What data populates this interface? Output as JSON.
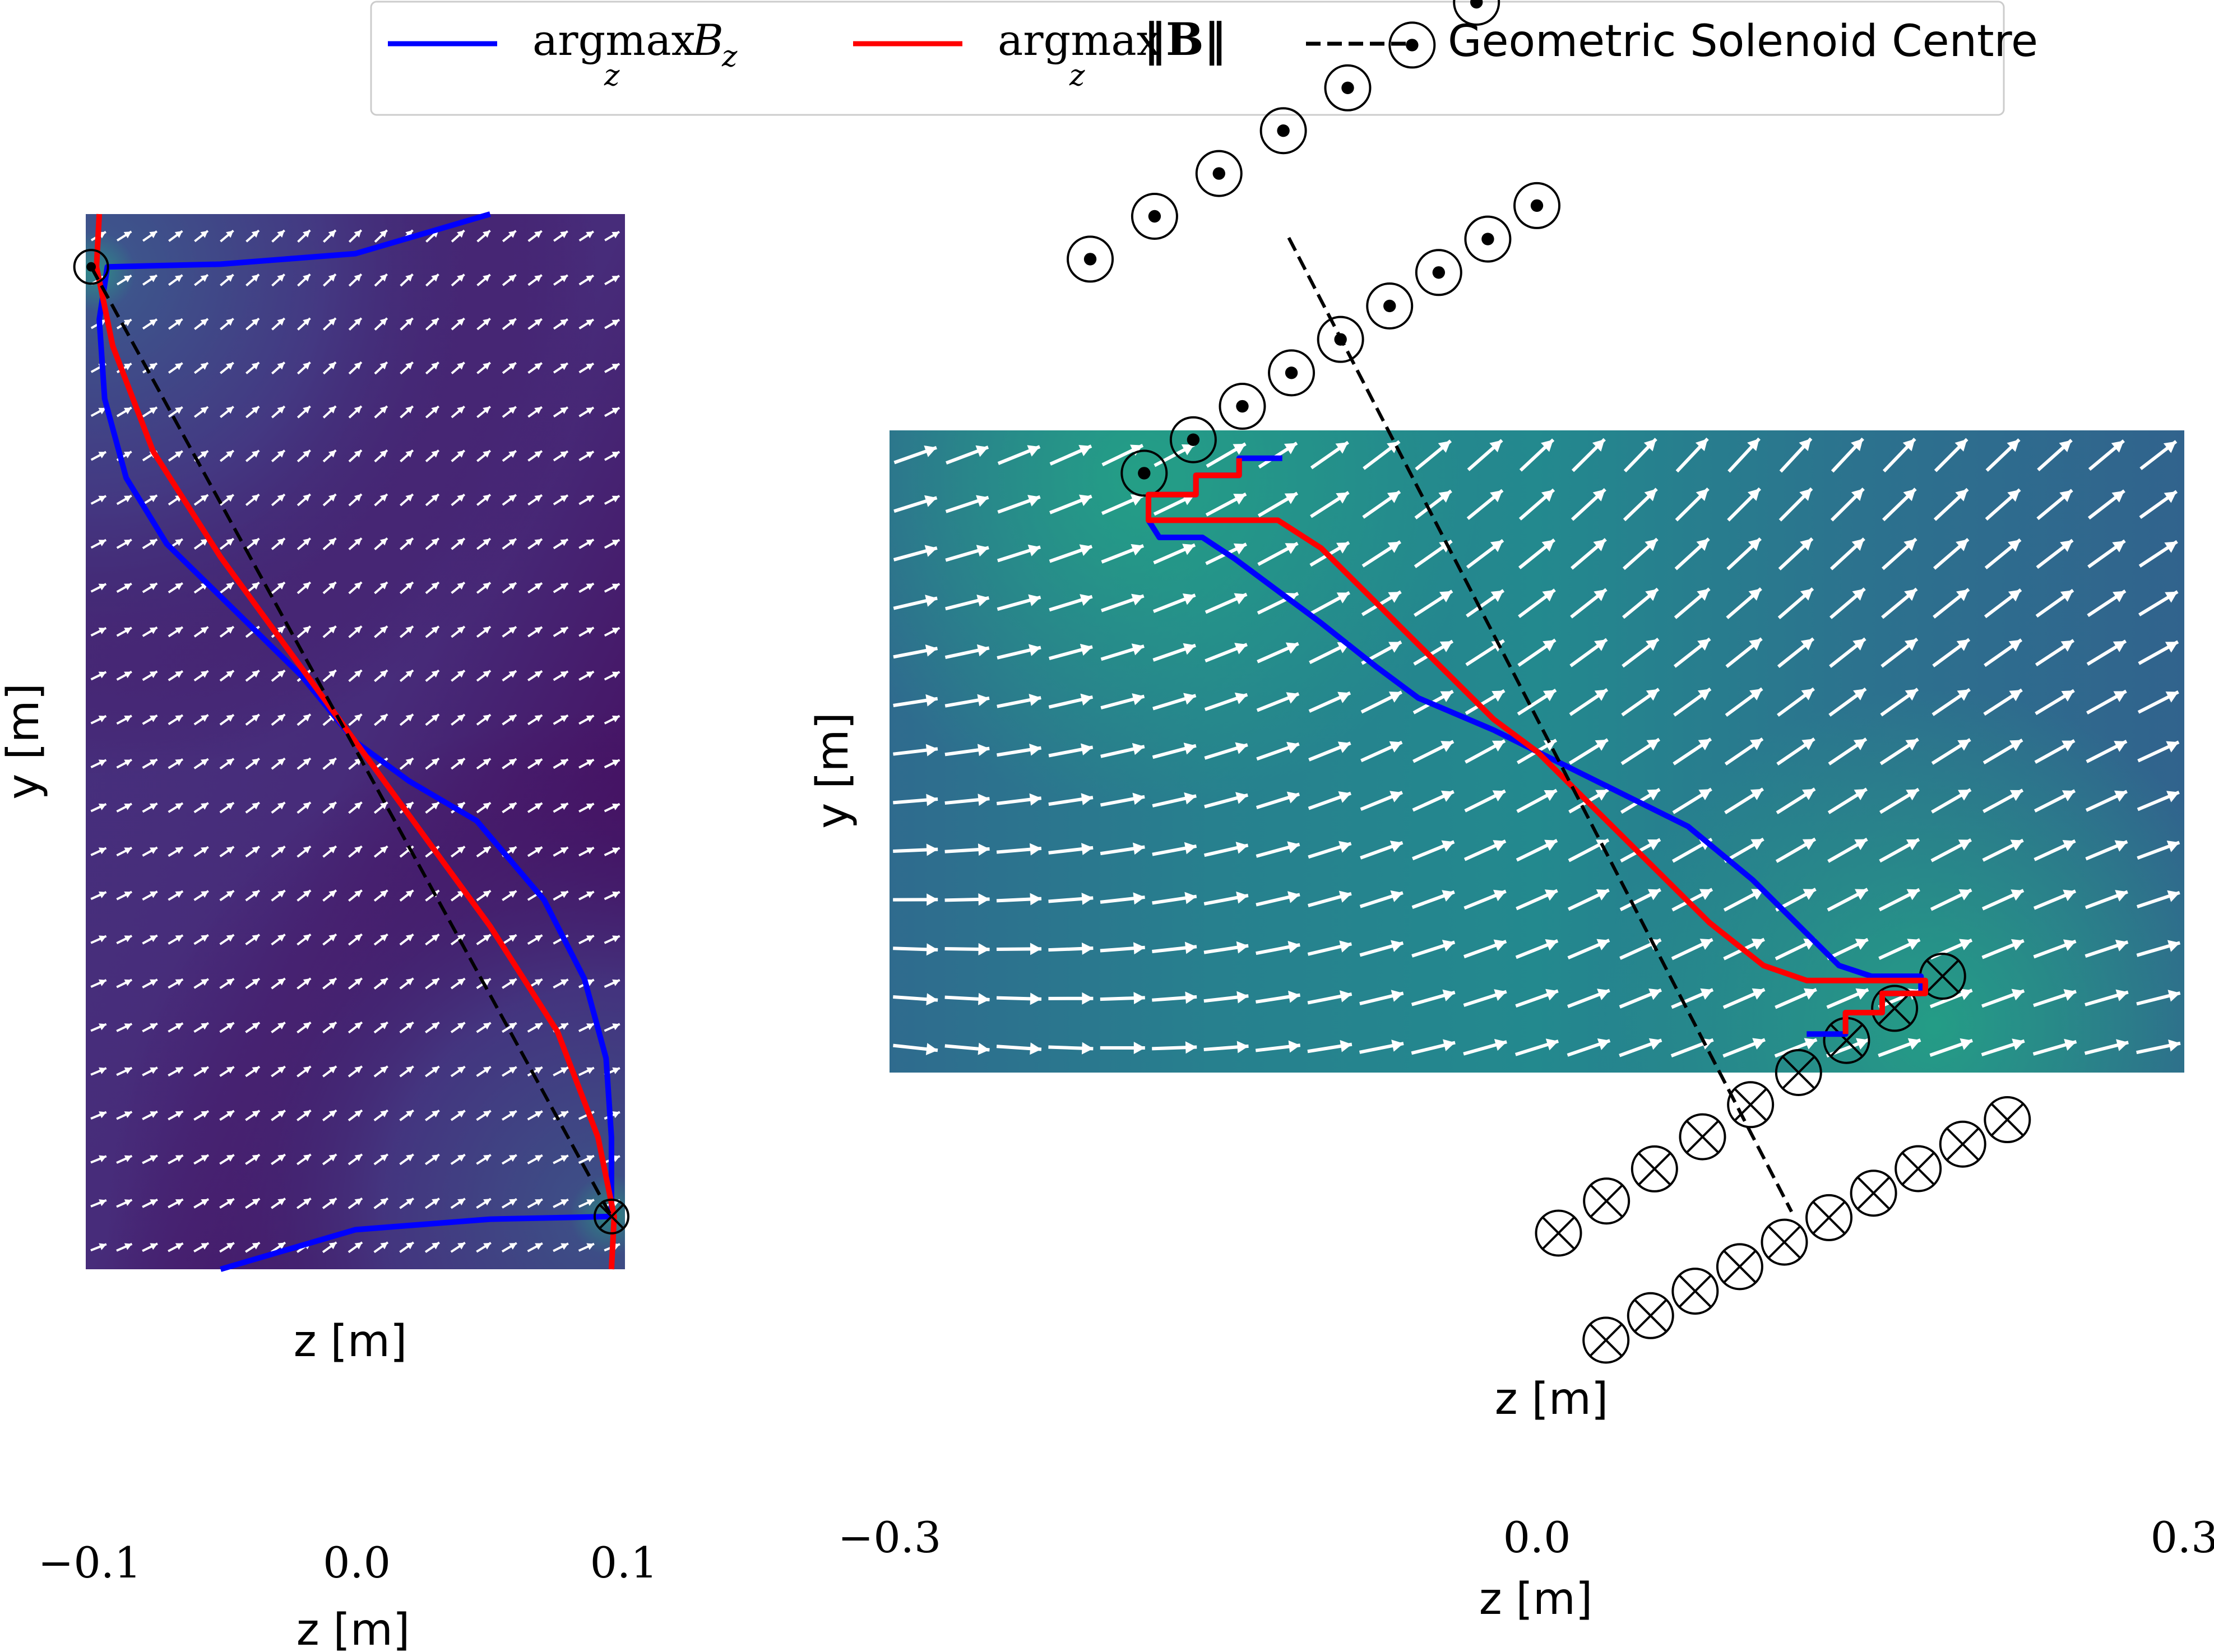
{
  "legend": {
    "location": "top-center",
    "entries": [
      {
        "label": "argmax",
        "sub": "z",
        "math": "B",
        "math_sub": "z",
        "color": "#0000ff",
        "style": "solid"
      },
      {
        "label": "argmax",
        "sub": "z",
        "math": "‖B‖",
        "color": "#ff0000",
        "style": "solid"
      },
      {
        "label": "Geometric Solenoid Centre",
        "color": "#000000",
        "style": "dashed"
      }
    ]
  },
  "chart_data": [
    {
      "type": "line",
      "panel": "left",
      "xlabel": "z [m]",
      "xlabel_secondary": "z [m]",
      "ylabel": "y [m]",
      "xlim": [
        -0.1,
        0.1
      ],
      "ylim": [
        -0.2,
        0.2
      ],
      "xticks": [
        -0.1,
        0.0,
        0.1
      ],
      "xtick_labels": [
        "−0.1",
        "0.0",
        "0.1"
      ],
      "background": "field magnitude contour (viridis) with unit quiver arrows",
      "coil_markers": [
        {
          "symbol": "dot",
          "z": -0.098,
          "y": 0.18
        },
        {
          "symbol": "cross",
          "z": 0.095,
          "y": -0.18
        }
      ],
      "series": [
        {
          "name": "argmax_z B_z",
          "color": "#0000ff",
          "points": [
            [
              0.05,
              0.2
            ],
            [
              0.0,
              0.185
            ],
            [
              -0.05,
              0.181
            ],
            [
              -0.092,
              0.18
            ],
            [
              -0.095,
              0.16
            ],
            [
              -0.093,
              0.13
            ],
            [
              -0.085,
              0.1
            ],
            [
              -0.07,
              0.075
            ],
            [
              -0.045,
              0.05
            ],
            [
              -0.02,
              0.025
            ],
            [
              0.0,
              0.0
            ],
            [
              0.02,
              -0.015
            ],
            [
              0.045,
              -0.03
            ],
            [
              0.07,
              -0.06
            ],
            [
              0.085,
              -0.09
            ],
            [
              0.093,
              -0.12
            ],
            [
              0.095,
              -0.15
            ],
            [
              0.095,
              -0.18
            ],
            [
              0.05,
              -0.181
            ],
            [
              0.0,
              -0.185
            ],
            [
              -0.05,
              -0.2
            ]
          ]
        },
        {
          "name": "argmax_z ||B||",
          "color": "#ff0000",
          "points": [
            [
              -0.095,
              0.2
            ],
            [
              -0.096,
              0.18
            ],
            [
              -0.09,
              0.15
            ],
            [
              -0.075,
              0.11
            ],
            [
              -0.05,
              0.07
            ],
            [
              -0.025,
              0.035
            ],
            [
              0.0,
              0.0
            ],
            [
              0.025,
              -0.035
            ],
            [
              0.05,
              -0.07
            ],
            [
              0.075,
              -0.11
            ],
            [
              0.09,
              -0.15
            ],
            [
              0.096,
              -0.18
            ],
            [
              0.095,
              -0.2
            ]
          ]
        },
        {
          "name": "Geometric Solenoid Centre",
          "color": "#000000",
          "dashed": true,
          "points": [
            [
              -0.098,
              0.18
            ],
            [
              0.095,
              -0.18
            ]
          ]
        }
      ]
    },
    {
      "type": "line",
      "panel": "right",
      "xlabel": "z [m]",
      "xlabel_secondary": "z [m]",
      "ylabel": "y [m]",
      "xlim": [
        -0.3,
        0.3
      ],
      "ylim": [
        -0.15,
        0.15
      ],
      "xticks": [
        -0.3,
        0.0,
        0.3
      ],
      "xtick_labels": [
        "−0.3",
        "0.0",
        "0.3"
      ],
      "background": "field magnitude contour (viridis) with unit quiver arrows",
      "coil_rows": [
        {
          "symbol": "dot",
          "start": [
            -0.207,
            0.23
          ],
          "end": [
            -0.028,
            0.35
          ],
          "count": 7
        },
        {
          "symbol": "dot",
          "start": [
            -0.182,
            0.13
          ],
          "end": [
            0.0,
            0.255
          ],
          "count": 9
        },
        {
          "symbol": "cross",
          "start": [
            0.01,
            -0.225
          ],
          "end": [
            0.188,
            -0.105
          ],
          "count": 9
        },
        {
          "symbol": "cross",
          "start": [
            0.032,
            -0.275
          ],
          "end": [
            0.218,
            -0.172
          ],
          "count": 10
        }
      ],
      "series": [
        {
          "name": "argmax_z B_z",
          "color": "#0000ff",
          "points": [
            [
              -0.118,
              0.137
            ],
            [
              -0.138,
              0.137
            ],
            [
              -0.138,
              0.129
            ],
            [
              -0.158,
              0.129
            ],
            [
              -0.158,
              0.12
            ],
            [
              -0.18,
              0.12
            ],
            [
              -0.18,
              0.108
            ],
            [
              -0.175,
              0.1
            ],
            [
              -0.155,
              0.1
            ],
            [
              -0.14,
              0.09
            ],
            [
              -0.12,
              0.075
            ],
            [
              -0.1,
              0.06
            ],
            [
              -0.075,
              0.04
            ],
            [
              -0.055,
              0.025
            ],
            [
              -0.02,
              0.01
            ],
            [
              0.0,
              0.0
            ],
            [
              0.03,
              -0.015
            ],
            [
              0.07,
              -0.035
            ],
            [
              0.1,
              -0.06
            ],
            [
              0.125,
              -0.085
            ],
            [
              0.14,
              -0.1
            ],
            [
              0.155,
              -0.105
            ],
            [
              0.178,
              -0.105
            ],
            [
              0.178,
              -0.113
            ],
            [
              0.16,
              -0.113
            ],
            [
              0.16,
              -0.122
            ],
            [
              0.143,
              -0.122
            ],
            [
              0.143,
              -0.132
            ],
            [
              0.125,
              -0.132
            ]
          ]
        },
        {
          "name": "argmax_z ||B||",
          "color": "#ff0000",
          "points": [
            [
              -0.138,
              0.137
            ],
            [
              -0.138,
              0.129
            ],
            [
              -0.158,
              0.129
            ],
            [
              -0.158,
              0.12
            ],
            [
              -0.18,
              0.12
            ],
            [
              -0.18,
              0.108
            ],
            [
              -0.12,
              0.108
            ],
            [
              -0.1,
              0.095
            ],
            [
              -0.08,
              0.075
            ],
            [
              -0.05,
              0.045
            ],
            [
              -0.02,
              0.015
            ],
            [
              0.0,
              0.0
            ],
            [
              0.03,
              -0.03
            ],
            [
              0.06,
              -0.06
            ],
            [
              0.08,
              -0.08
            ],
            [
              0.105,
              -0.1
            ],
            [
              0.125,
              -0.107
            ],
            [
              0.18,
              -0.107
            ],
            [
              0.18,
              -0.113
            ],
            [
              0.16,
              -0.113
            ],
            [
              0.16,
              -0.122
            ],
            [
              0.143,
              -0.122
            ],
            [
              0.143,
              -0.132
            ]
          ]
        },
        {
          "name": "Geometric Solenoid Centre",
          "color": "#000000",
          "dashed": true,
          "points": [
            [
              -0.115,
              0.24
            ],
            [
              0.118,
              -0.215
            ]
          ]
        }
      ]
    }
  ]
}
